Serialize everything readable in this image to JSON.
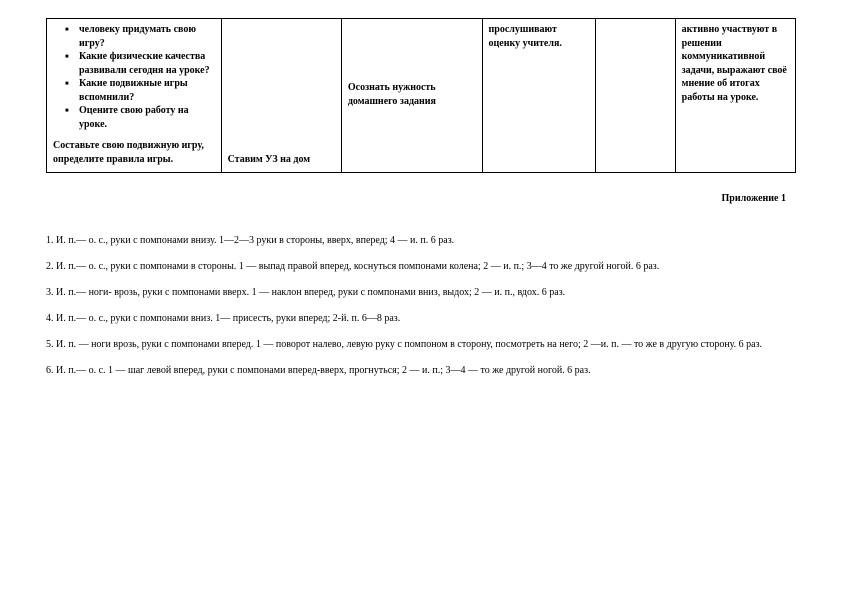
{
  "table": {
    "col1": {
      "first_line": "человеку придумать свою игру?",
      "bullets": [
        "Какие физические качества развивали сегодня на уроке?",
        "Какие подвижные игры вспомнили?",
        "Оцените свою работу на уроке."
      ],
      "plain": "Составьте свою подвижную игру, определите правила игры."
    },
    "col2": "Ставим УЗ на дом",
    "col3": "Осознать нужность домашнего задания",
    "col4": "прослушивают оценку учителя.",
    "col5": "",
    "col6": "активно участвуют в решении коммуникативной задачи, выражают своё мнение об итогах работы на уроке."
  },
  "appendix_title": "Приложение 1",
  "exercises": [
    "1.  И. п.— о. с., руки с помпонами внизу. 1—2—3 руки в стороны, вверх, вперед; 4 — и. п. 6 раз.",
    "2.  И. п.— о. с., руки с помпонами в стороны. 1 — выпад правой вперед, коснуться помпонами колена; 2 — и. п.; 3—4 то же другой ногой. 6 раз.",
    "3.  И. п.— ноги- врозь, руки с помпонами вверх.  1 — наклон вперед, руки с помпонами вниз, выдох; 2 — и. п., вдох. 6 раз.",
    "4.  И. п.— о. с., руки с помпонами  вниз.  1— присесть, руки вперед; 2-й. п. 6—8 раз.",
    "5.  И. п. — ноги врозь, руки с помпонами вперед. 1 — поворот налево, левую руку с помпоном в сторону, посмотреть на него; 2 —и. п. —  то же в другую сторону. 6 раз.",
    "6.  И. п.— о. с. 1 — шаг левой вперед, руки с помпонами  вперед-вверх,  прогнуться;   2 — и.  п.;    3—4 — то же другой  ногой. 6 раз."
  ]
}
